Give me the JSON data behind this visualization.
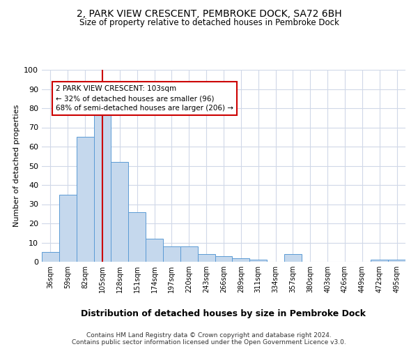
{
  "title1": "2, PARK VIEW CRESCENT, PEMBROKE DOCK, SA72 6BH",
  "title2": "Size of property relative to detached houses in Pembroke Dock",
  "xlabel": "Distribution of detached houses by size in Pembroke Dock",
  "ylabel": "Number of detached properties",
  "categories": [
    "36sqm",
    "59sqm",
    "82sqm",
    "105sqm",
    "128sqm",
    "151sqm",
    "174sqm",
    "197sqm",
    "220sqm",
    "243sqm",
    "266sqm",
    "289sqm",
    "311sqm",
    "334sqm",
    "357sqm",
    "380sqm",
    "403sqm",
    "426sqm",
    "449sqm",
    "472sqm",
    "495sqm"
  ],
  "values": [
    5,
    35,
    65,
    77,
    52,
    26,
    12,
    8,
    8,
    4,
    3,
    2,
    1,
    0,
    4,
    0,
    0,
    0,
    0,
    1,
    1
  ],
  "bar_color": "#c5d8ed",
  "bar_edge_color": "#5b9bd5",
  "vline_x": 3,
  "vline_color": "#cc0000",
  "annotation_text": "2 PARK VIEW CRESCENT: 103sqm\n← 32% of detached houses are smaller (96)\n68% of semi-detached houses are larger (206) →",
  "annotation_box_color": "#ffffff",
  "annotation_box_edge": "#cc0000",
  "footer1": "Contains HM Land Registry data © Crown copyright and database right 2024.",
  "footer2": "Contains public sector information licensed under the Open Government Licence v3.0.",
  "bg_color": "#ffffff",
  "grid_color": "#d0d8e8",
  "ylim": [
    0,
    100
  ]
}
